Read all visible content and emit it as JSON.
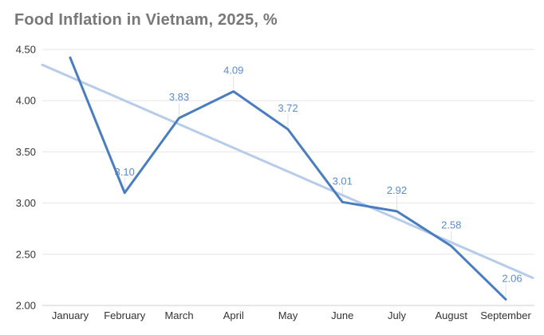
{
  "chart_data": {
    "type": "line",
    "title": "Food Inflation in Vietnam, 2025, %",
    "categories": [
      "January",
      "February",
      "March",
      "April",
      "May",
      "June",
      "July",
      "August",
      "September"
    ],
    "series": [
      {
        "name": "food-inflation",
        "values": [
          4.42,
          3.1,
          3.83,
          4.09,
          3.72,
          3.01,
          2.92,
          2.58,
          2.06
        ],
        "data_labels": [
          null,
          "3.10",
          "3.83",
          "4.09",
          "3.72",
          "3.01",
          "2.92",
          "2.58",
          "2.06"
        ],
        "color": "#4a7dc0"
      },
      {
        "name": "trend",
        "type": "trendline",
        "start_value": 4.35,
        "end_value": 2.27,
        "color": "#b7cce9"
      }
    ],
    "ylim": [
      2.0,
      4.5
    ],
    "y_ticks": [
      "4.50",
      "4.00",
      "3.50",
      "3.00",
      "2.50",
      "2.00"
    ],
    "xlabel": "",
    "ylabel": "",
    "grid": "horizontal",
    "legend": "none"
  },
  "colors": {
    "background": "#ffffff",
    "title": "#787878",
    "gridline": "#e6e6e6",
    "axis_line": "#cfcfcf",
    "tick_label": "#333333",
    "data_label": "#5b8ccd",
    "leader_line": "#e0e0e0",
    "main_line": "#4a7dc0",
    "trend_line": "#b7cce9"
  }
}
